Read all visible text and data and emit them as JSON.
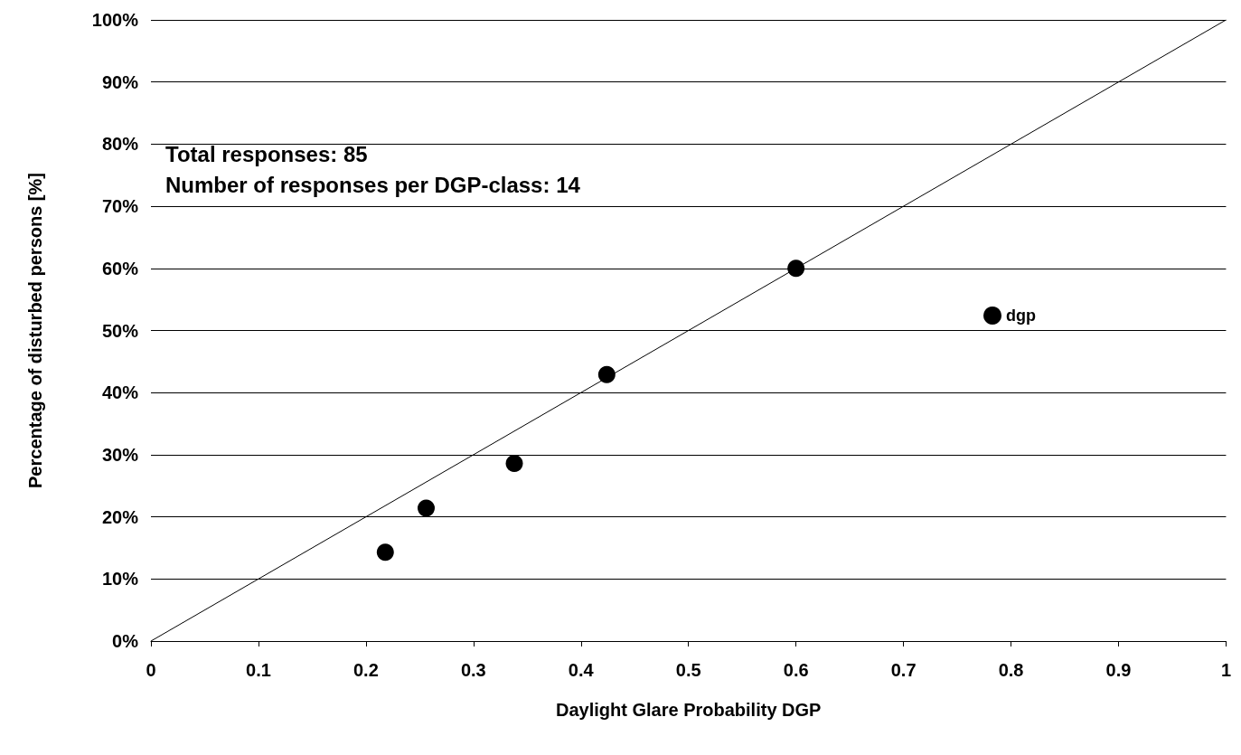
{
  "chart_data": {
    "type": "scatter",
    "xlabel": "Daylight Glare Probability DGP",
    "ylabel": "Percentage of disturbed persons [%]",
    "annotations": [
      "Total responses: 85",
      "Number of responses per DGP-class: 14"
    ],
    "series": [
      {
        "name": "dgp",
        "color": "#000000",
        "marker": "circle",
        "x": [
          0.218,
          0.256,
          0.338,
          0.424,
          0.6
        ],
        "values": [
          14.3,
          21.4,
          28.6,
          42.9,
          60
        ]
      },
      {
        "type": "line",
        "color": "#000000",
        "marker": "none",
        "line_style": "solid",
        "x": [
          0,
          1
        ],
        "values": [
          0,
          100
        ]
      }
    ],
    "xlim": [
      0,
      1
    ],
    "xticks": [
      0,
      0.1,
      0.2,
      0.3,
      0.4,
      0.5,
      0.6,
      0.7,
      0.8,
      0.9,
      1
    ],
    "ylim": [
      0,
      100
    ],
    "yticks": [
      {
        "value": 0,
        "label": "0%"
      },
      {
        "value": 10,
        "label": "10%"
      },
      {
        "value": 20,
        "label": "20%"
      },
      {
        "value": 30,
        "label": "30%"
      },
      {
        "value": 40,
        "label": "40%"
      },
      {
        "value": 50,
        "label": "50%"
      },
      {
        "value": 60,
        "label": "60%"
      },
      {
        "value": 70,
        "label": "70%"
      },
      {
        "value": 80,
        "label": "80%"
      },
      {
        "value": 90,
        "label": "90%"
      },
      {
        "value": 100,
        "label": "100%"
      }
    ],
    "grid": "y",
    "legend": "right"
  }
}
